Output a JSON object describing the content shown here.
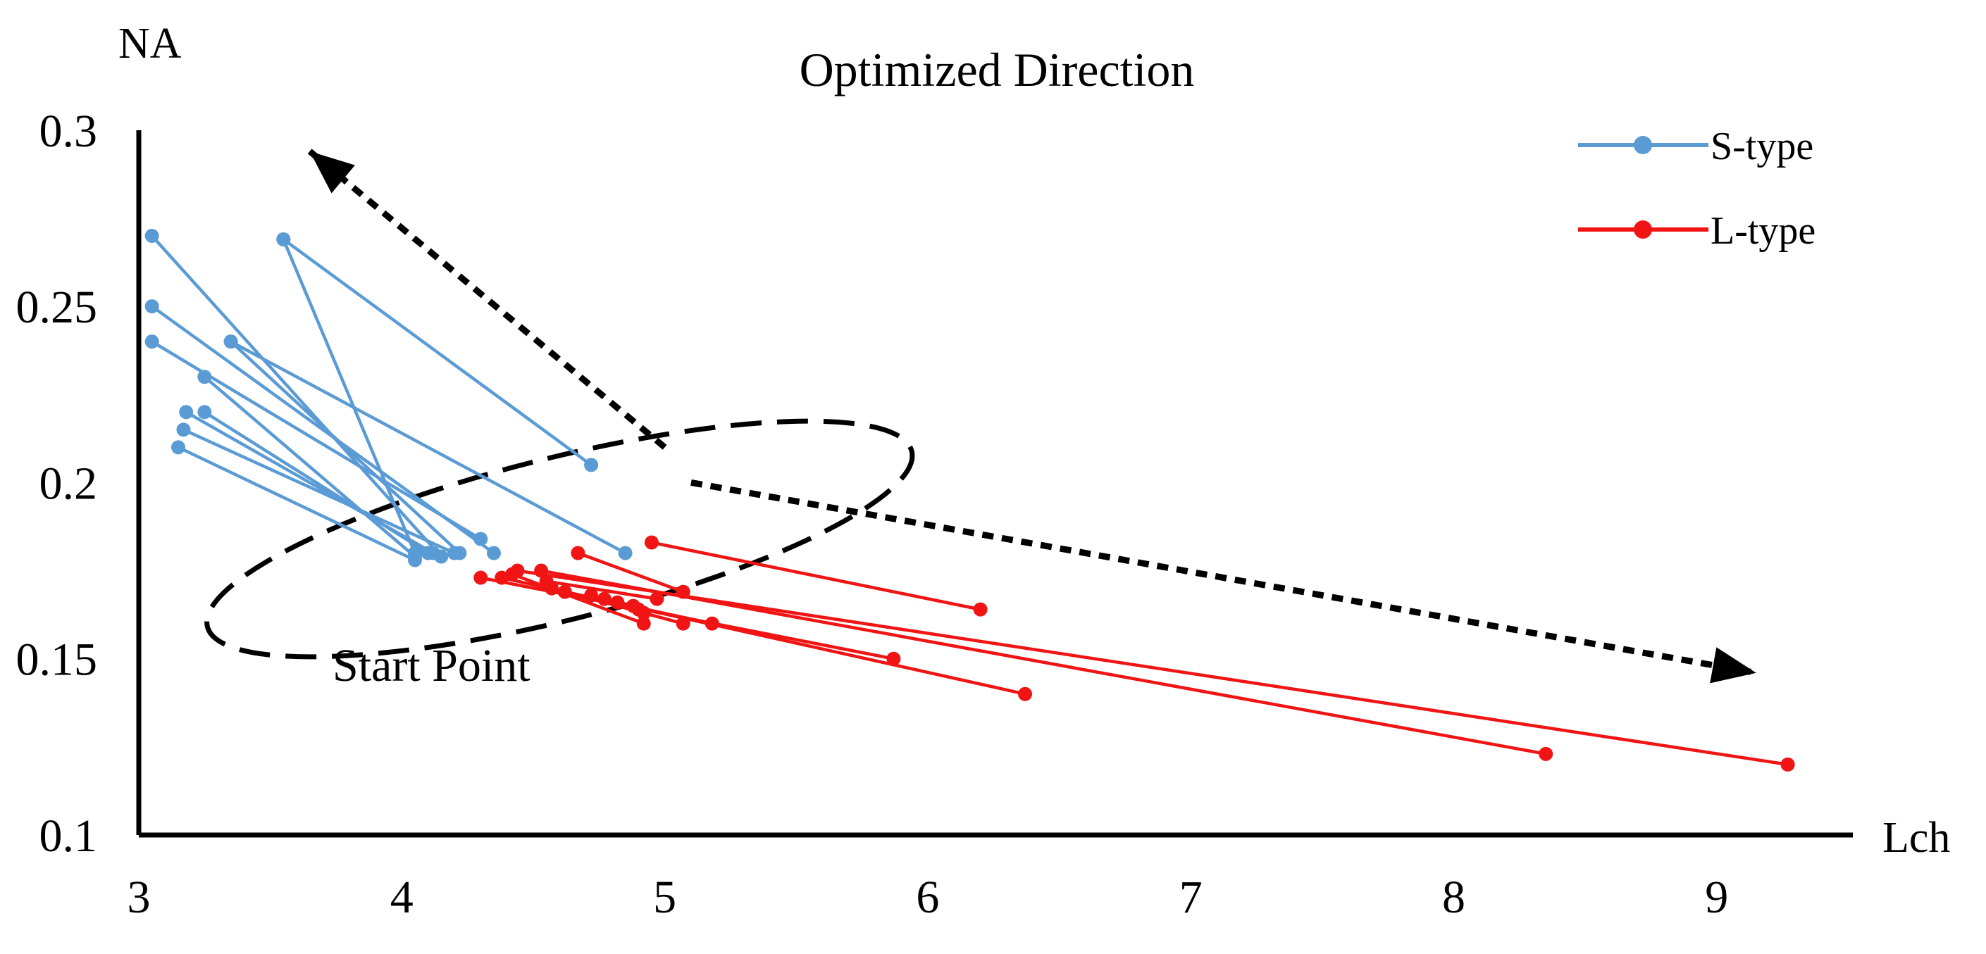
{
  "chart_data": {
    "type": "line",
    "title": "Optimized Direction",
    "xlabel": "Lch",
    "ylabel": "NA",
    "xlim": [
      3,
      9.5
    ],
    "ylim": [
      0.1,
      0.3
    ],
    "x_ticks": [
      "3",
      "4",
      "5",
      "6",
      "7",
      "8",
      "9"
    ],
    "y_ticks": [
      "0.1",
      "0.15",
      "0.2",
      "0.25",
      "0.3"
    ],
    "grid": false,
    "legend_position": "top-right",
    "annotations": {
      "start_label": "Start Point",
      "start_region": {
        "cx": 4.6,
        "cy": 0.184,
        "rx": 1.38,
        "ry": 0.023
      },
      "arrow_up": {
        "from": [
          5.0,
          0.21
        ],
        "to": [
          3.65,
          0.294
        ]
      },
      "arrow_right": {
        "from": [
          5.1,
          0.2
        ],
        "to": [
          9.15,
          0.146
        ]
      }
    },
    "series": [
      {
        "name": "S-type",
        "color": "#5B9BD5",
        "segments": [
          {
            "x": [
              3.05,
              4.15
            ],
            "y": [
              0.27,
              0.179
            ]
          },
          {
            "x": [
              3.05,
              4.35
            ],
            "y": [
              0.25,
              0.18
            ]
          },
          {
            "x": [
              3.05,
              4.3
            ],
            "y": [
              0.24,
              0.184
            ]
          },
          {
            "x": [
              3.55,
              4.05
            ],
            "y": [
              0.269,
              0.18
            ]
          },
          {
            "x": [
              3.55,
              4.72
            ],
            "y": [
              0.269,
              0.205
            ]
          },
          {
            "x": [
              3.25,
              4.05
            ],
            "y": [
              0.23,
              0.179
            ]
          },
          {
            "x": [
              3.35,
              4.22
            ],
            "y": [
              0.24,
              0.18
            ]
          },
          {
            "x": [
              3.35,
              4.85
            ],
            "y": [
              0.24,
              0.18
            ]
          },
          {
            "x": [
              3.18,
              4.12
            ],
            "y": [
              0.22,
              0.18
            ]
          },
          {
            "x": [
              3.25,
              4.1
            ],
            "y": [
              0.22,
              0.18
            ]
          },
          {
            "x": [
              3.17,
              4.2
            ],
            "y": [
              0.215,
              0.18
            ]
          },
          {
            "x": [
              3.15,
              4.05
            ],
            "y": [
              0.21,
              0.178
            ]
          }
        ]
      },
      {
        "name": "L-type",
        "color": "#F01414",
        "segments": [
          {
            "x": [
              4.95,
              6.2
            ],
            "y": [
              0.183,
              0.164
            ]
          },
          {
            "x": [
              4.67,
              5.07
            ],
            "y": [
              0.18,
              0.169
            ]
          },
          {
            "x": [
              4.3,
              5.87
            ],
            "y": [
              0.173,
              0.15
            ]
          },
          {
            "x": [
              4.38,
              6.37
            ],
            "y": [
              0.173,
              0.14
            ]
          },
          {
            "x": [
              4.53,
              8.35
            ],
            "y": [
              0.175,
              0.123
            ]
          },
          {
            "x": [
              4.44,
              9.27
            ],
            "y": [
              0.175,
              0.12
            ]
          },
          {
            "x": [
              4.42,
              4.92
            ],
            "y": [
              0.174,
              0.16
            ]
          },
          {
            "x": [
              4.55,
              4.97
            ],
            "y": [
              0.172,
              0.167
            ]
          },
          {
            "x": [
              4.57,
              5.07
            ],
            "y": [
              0.17,
              0.16
            ]
          },
          {
            "x": [
              4.62,
              5.18
            ],
            "y": [
              0.169,
              0.16
            ]
          },
          {
            "x": [
              4.77,
              4.92
            ],
            "y": [
              0.167,
              0.163
            ]
          },
          {
            "x": [
              4.82,
              4.9
            ],
            "y": [
              0.166,
              0.164
            ]
          },
          {
            "x": [
              4.72,
              4.88
            ],
            "y": [
              0.168,
              0.165
            ]
          }
        ]
      }
    ]
  }
}
